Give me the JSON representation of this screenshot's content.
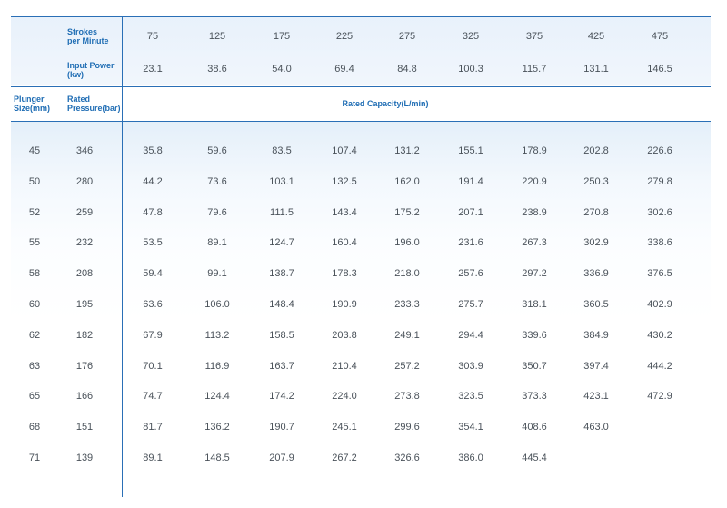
{
  "header": {
    "strokes_label": "Strokes\nper Minute",
    "power_label": "Input Power\n(kw)",
    "plunger_label": "Plunger\nSize(mm)",
    "pressure_label": "Rated\nPressure(bar)",
    "capacity_label": "Rated Capacity(L/min)"
  },
  "strokes": [
    "75",
    "125",
    "175",
    "225",
    "275",
    "325",
    "375",
    "425",
    "475"
  ],
  "power": [
    "23.1",
    "38.6",
    "54.0",
    "69.4",
    "84.8",
    "100.3",
    "115.7",
    "131.1",
    "146.5"
  ],
  "rows": [
    {
      "size": "45",
      "pressure": "346",
      "values": [
        "35.8",
        "59.6",
        "83.5",
        "107.4",
        "131.2",
        "155.1",
        "178.9",
        "202.8",
        "226.6"
      ]
    },
    {
      "size": "50",
      "pressure": "280",
      "values": [
        "44.2",
        "73.6",
        "103.1",
        "132.5",
        "162.0",
        "191.4",
        "220.9",
        "250.3",
        "279.8"
      ]
    },
    {
      "size": "52",
      "pressure": "259",
      "values": [
        "47.8",
        "79.6",
        "111.5",
        "143.4",
        "175.2",
        "207.1",
        "238.9",
        "270.8",
        "302.6"
      ]
    },
    {
      "size": "55",
      "pressure": "232",
      "values": [
        "53.5",
        "89.1",
        "124.7",
        "160.4",
        "196.0",
        "231.6",
        "267.3",
        "302.9",
        "338.6"
      ]
    },
    {
      "size": "58",
      "pressure": "208",
      "values": [
        "59.4",
        "99.1",
        "138.7",
        "178.3",
        "218.0",
        "257.6",
        "297.2",
        "336.9",
        "376.5"
      ]
    },
    {
      "size": "60",
      "pressure": "195",
      "values": [
        "63.6",
        "106.0",
        "148.4",
        "190.9",
        "233.3",
        "275.7",
        "318.1",
        "360.5",
        "402.9"
      ]
    },
    {
      "size": "62",
      "pressure": "182",
      "values": [
        "67.9",
        "113.2",
        "158.5",
        "203.8",
        "249.1",
        "294.4",
        "339.6",
        "384.9",
        "430.2"
      ]
    },
    {
      "size": "63",
      "pressure": "176",
      "values": [
        "70.1",
        "116.9",
        "163.7",
        "210.4",
        "257.2",
        "303.9",
        "350.7",
        "397.4",
        "444.2"
      ]
    },
    {
      "size": "65",
      "pressure": "166",
      "values": [
        "74.7",
        "124.4",
        "174.2",
        "224.0",
        "273.8",
        "323.5",
        "373.3",
        "423.1",
        "472.9"
      ]
    },
    {
      "size": "68",
      "pressure": "151",
      "values": [
        "81.7",
        "136.2",
        "190.7",
        "245.1",
        "299.6",
        "354.1",
        "408.6",
        "463.0",
        ""
      ]
    },
    {
      "size": "71",
      "pressure": "139",
      "values": [
        "89.1",
        "148.5",
        "207.9",
        "267.2",
        "326.6",
        "386.0",
        "445.4",
        "",
        ""
      ]
    }
  ]
}
